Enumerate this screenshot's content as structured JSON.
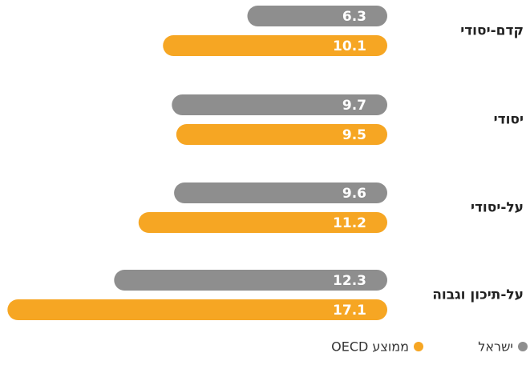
{
  "chart_data": {
    "type": "barh",
    "categories": [
      "קדם-יסודי",
      "יסודי",
      "על-יסודי",
      "על-תיכון וגבוה"
    ],
    "series": [
      {
        "name": "ישראל",
        "color": "#8e8e8e",
        "values": [
          6.3,
          9.7,
          9.6,
          12.3
        ]
      },
      {
        "name": "ממוצע OECD",
        "color": "#f6a623",
        "values": [
          10.1,
          9.5,
          11.2,
          17.1
        ]
      }
    ]
  }
}
